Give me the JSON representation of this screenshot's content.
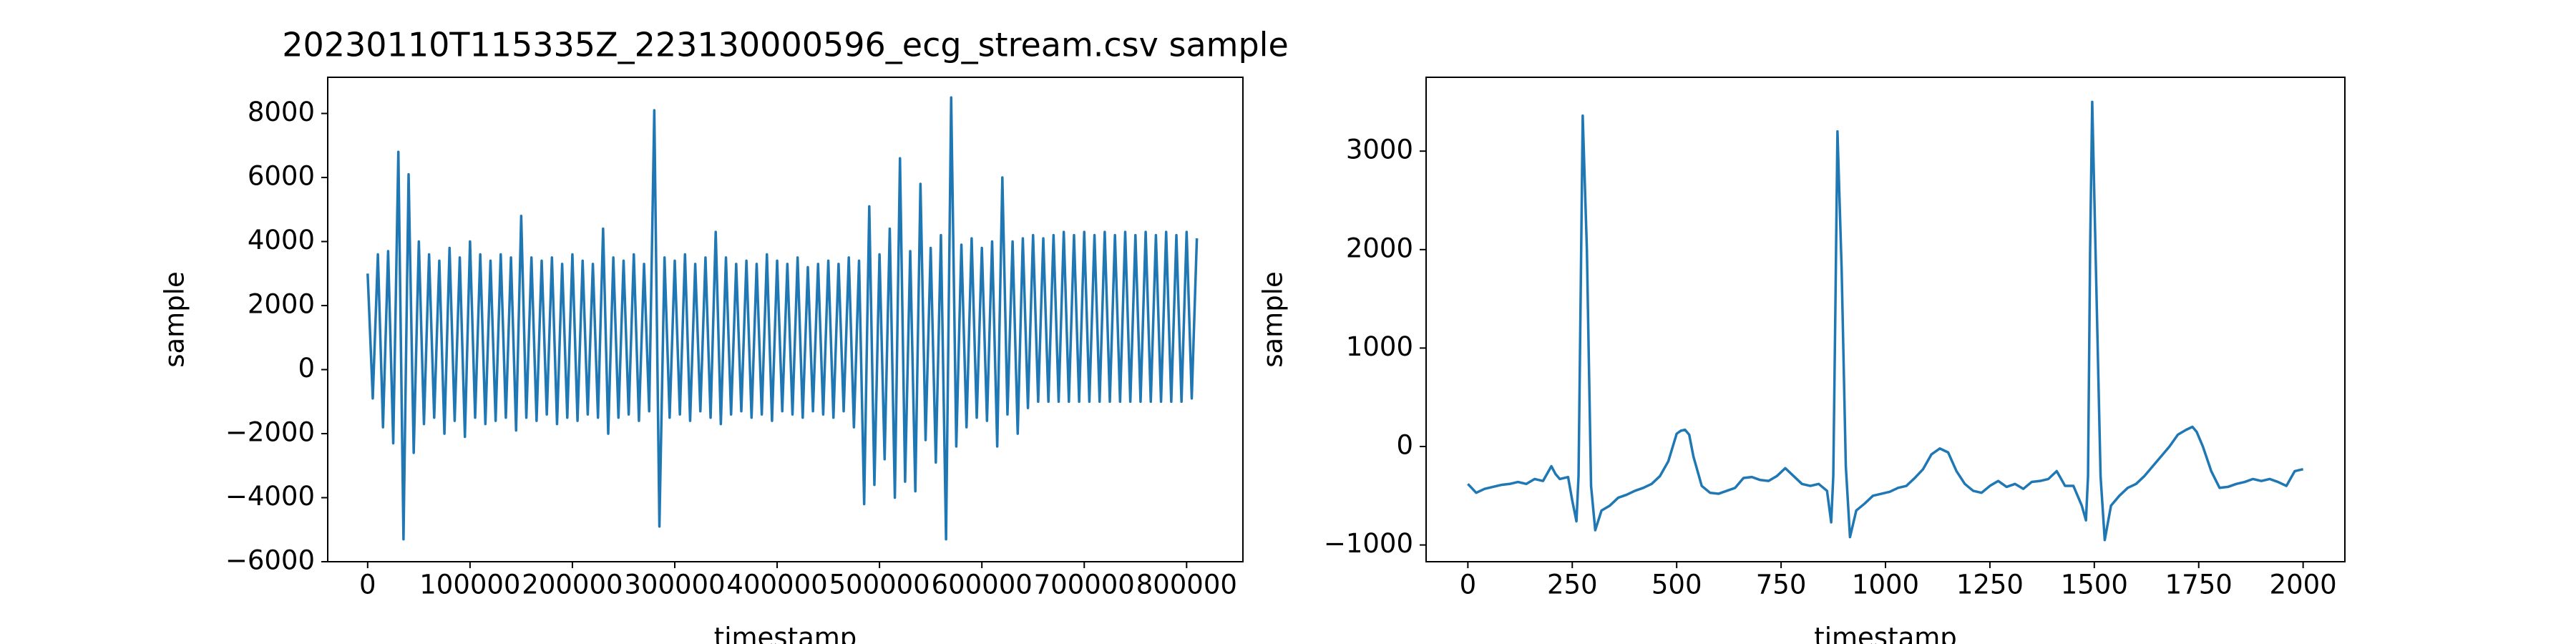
{
  "chart_data": [
    {
      "type": "line",
      "title": "20230110T115335Z_223130000596_ecg_stream.csv sample",
      "xlabel": "timestamp",
      "ylabel": "sample",
      "color": "#1f77b4",
      "xlim": [
        -39000,
        855000
      ],
      "ylim": [
        -6000,
        9130
      ],
      "xticks": [
        0,
        100000,
        200000,
        300000,
        400000,
        500000,
        600000,
        700000,
        800000
      ],
      "yticks": [
        {
          "value": -6000,
          "label": "−6000"
        },
        {
          "value": -4000,
          "label": "−4000"
        },
        {
          "value": -2000,
          "label": "−2000"
        },
        0,
        2000,
        4000,
        6000,
        8000
      ],
      "x": [
        0,
        5000,
        10000,
        15000,
        20000,
        25000,
        30000,
        35000,
        40000,
        45000,
        50000,
        55000,
        60000,
        65000,
        70000,
        75000,
        80000,
        85000,
        90000,
        95000,
        100000,
        105000,
        110000,
        115000,
        120000,
        125000,
        130000,
        135000,
        140000,
        145000,
        150000,
        155000,
        160000,
        165000,
        170000,
        175000,
        180000,
        185000,
        190000,
        195000,
        200000,
        205000,
        210000,
        215000,
        220000,
        225000,
        230000,
        235000,
        240000,
        245000,
        250000,
        255000,
        260000,
        265000,
        270000,
        275000,
        280000,
        285000,
        290000,
        295000,
        300000,
        305000,
        310000,
        315000,
        320000,
        325000,
        330000,
        335000,
        340000,
        345000,
        350000,
        355000,
        360000,
        365000,
        370000,
        375000,
        380000,
        385000,
        390000,
        395000,
        400000,
        405000,
        410000,
        415000,
        420000,
        425000,
        430000,
        435000,
        440000,
        445000,
        450000,
        455000,
        460000,
        465000,
        470000,
        475000,
        480000,
        485000,
        490000,
        495000,
        500000,
        505000,
        510000,
        515000,
        520000,
        525000,
        530000,
        535000,
        540000,
        545000,
        550000,
        555000,
        560000,
        565000,
        570000,
        575000,
        580000,
        585000,
        590000,
        595000,
        600000,
        605000,
        610000,
        615000,
        620000,
        625000,
        630000,
        635000,
        640000,
        645000,
        650000,
        655000,
        660000,
        665000,
        670000,
        675000,
        680000,
        685000,
        690000,
        695000,
        700000,
        705000,
        710000,
        715000,
        720000,
        725000,
        730000,
        735000,
        740000,
        745000,
        750000,
        755000,
        760000,
        765000,
        770000,
        775000,
        780000,
        785000,
        790000,
        795000,
        800000,
        805000,
        810000
      ],
      "values": [
        3000,
        -900,
        3600,
        -1800,
        3700,
        -2300,
        6800,
        -5300,
        6100,
        -2600,
        4000,
        -1700,
        3600,
        -1500,
        3400,
        -2000,
        3800,
        -1600,
        3500,
        -2100,
        4000,
        -1500,
        3600,
        -1700,
        3400,
        -1600,
        3600,
        -1500,
        3500,
        -1900,
        4800,
        -1500,
        3500,
        -1600,
        3400,
        -1400,
        3500,
        -1700,
        3300,
        -1500,
        3600,
        -1600,
        3400,
        -1400,
        3300,
        -1500,
        4400,
        -2000,
        3500,
        -1500,
        3400,
        -1400,
        3600,
        -1600,
        3300,
        -1300,
        8100,
        -4900,
        3500,
        -1500,
        3400,
        -1400,
        3600,
        -1600,
        3300,
        -1300,
        3500,
        -1500,
        4300,
        -1700,
        3500,
        -1400,
        3300,
        -1300,
        3400,
        -1500,
        3300,
        -1400,
        3600,
        -1600,
        3400,
        -1300,
        3300,
        -1400,
        3500,
        -1500,
        3200,
        -1300,
        3300,
        -1400,
        3400,
        -1500,
        3300,
        -1300,
        3500,
        -1800,
        3400,
        -4200,
        5100,
        -3600,
        3600,
        -2800,
        4400,
        -4000,
        6600,
        -3500,
        3700,
        -3800,
        5800,
        -2200,
        3800,
        -2900,
        4200,
        -5300,
        8500,
        -2400,
        3900,
        -1800,
        4100,
        -1500,
        3800,
        -1600,
        4000,
        -2400,
        6000,
        -1400,
        4000,
        -2000,
        4100,
        -1200,
        4200,
        -1000,
        4100,
        -1000,
        4200,
        -1000,
        4300,
        -1000,
        4200,
        -1000,
        4300,
        -1000,
        4200,
        -1000,
        4300,
        -1000,
        4200,
        -1000,
        4300,
        -1000,
        4200,
        -1000,
        4300,
        -1000,
        4200,
        -1000,
        4300,
        -1000,
        4200,
        -1000,
        4300,
        -900,
        4100
      ]
    },
    {
      "type": "line",
      "xlabel": "timestamp",
      "ylabel": "sample",
      "color": "#1f77b4",
      "xlim": [
        -100,
        2100
      ],
      "ylim": [
        -1170,
        3750
      ],
      "xticks": [
        0,
        250,
        500,
        750,
        1000,
        1250,
        1500,
        1750,
        2000
      ],
      "yticks": [
        {
          "value": -1000,
          "label": "−1000"
        },
        0,
        1000,
        2000,
        3000
      ],
      "x": [
        0,
        20,
        40,
        60,
        80,
        100,
        120,
        140,
        160,
        180,
        200,
        210,
        220,
        240,
        250,
        260,
        265,
        270,
        275,
        285,
        295,
        305,
        320,
        340,
        360,
        380,
        400,
        420,
        440,
        460,
        480,
        500,
        510,
        520,
        530,
        540,
        560,
        580,
        600,
        620,
        640,
        660,
        680,
        700,
        720,
        740,
        760,
        780,
        800,
        820,
        840,
        860,
        870,
        875,
        880,
        885,
        895,
        905,
        915,
        930,
        950,
        970,
        990,
        1010,
        1030,
        1050,
        1070,
        1090,
        1110,
        1130,
        1150,
        1170,
        1190,
        1210,
        1230,
        1250,
        1270,
        1290,
        1310,
        1330,
        1350,
        1370,
        1390,
        1410,
        1430,
        1450,
        1470,
        1480,
        1485,
        1490,
        1495,
        1505,
        1515,
        1525,
        1540,
        1560,
        1580,
        1600,
        1620,
        1640,
        1660,
        1680,
        1700,
        1720,
        1735,
        1745,
        1760,
        1780,
        1800,
        1820,
        1840,
        1860,
        1880,
        1900,
        1920,
        1940,
        1960,
        1980,
        2000
      ],
      "values": [
        -380,
        -470,
        -430,
        -410,
        -390,
        -380,
        -360,
        -380,
        -330,
        -350,
        -200,
        -280,
        -330,
        -310,
        -550,
        -760,
        -300,
        1500,
        3360,
        2000,
        -400,
        -850,
        -650,
        -600,
        -520,
        -490,
        -450,
        -420,
        -380,
        -300,
        -150,
        130,
        160,
        170,
        120,
        -100,
        -400,
        -470,
        -480,
        -450,
        -420,
        -320,
        -310,
        -340,
        -350,
        -300,
        -220,
        -300,
        -380,
        -400,
        -380,
        -450,
        -770,
        -300,
        1400,
        3200,
        1800,
        -200,
        -920,
        -650,
        -580,
        -500,
        -480,
        -460,
        -420,
        -400,
        -320,
        -230,
        -80,
        -20,
        -60,
        -250,
        -380,
        -450,
        -470,
        -400,
        -350,
        -410,
        -380,
        -430,
        -360,
        -350,
        -330,
        -250,
        -400,
        -400,
        -600,
        -750,
        -300,
        2000,
        3500,
        1600,
        -300,
        -950,
        -600,
        -500,
        -420,
        -380,
        -300,
        -200,
        -100,
        0,
        120,
        170,
        200,
        150,
        0,
        -250,
        -420,
        -410,
        -380,
        -360,
        -330,
        -350,
        -330,
        -360,
        -400,
        -250,
        -230
      ]
    }
  ]
}
